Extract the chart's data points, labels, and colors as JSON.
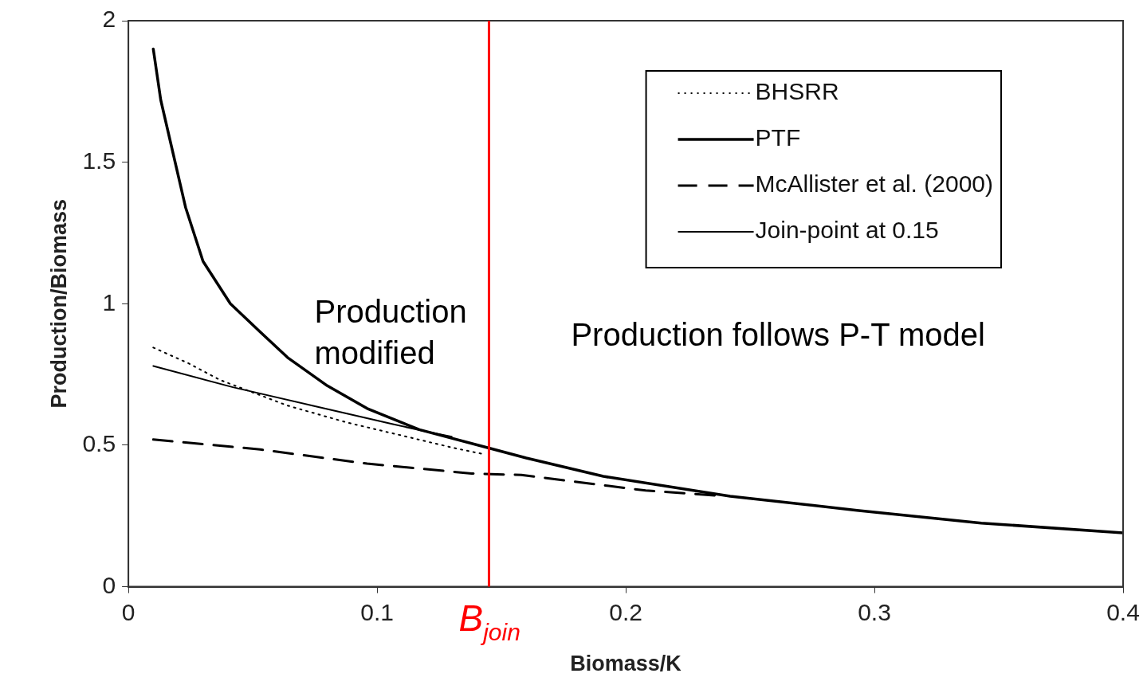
{
  "chart_data": {
    "type": "line",
    "xlabel": "Biomass/K",
    "ylabel": "Production/Biomass",
    "xlim": [
      0,
      0.4
    ],
    "xticks": [
      0,
      0.1,
      0.2,
      0.3,
      0.4
    ],
    "ylim": [
      0,
      2
    ],
    "yticks": [
      0,
      0.5,
      1,
      1.5,
      2
    ],
    "grid": false,
    "legend": "top right",
    "marker": "none",
    "series": [
      {
        "name": "BHSRR",
        "color": "#000000",
        "line_style": "dotted",
        "x": [
          0.01,
          0.024,
          0.037,
          0.064,
          0.088,
          0.112,
          0.131,
          0.142
        ],
        "values": [
          0.845,
          0.79,
          0.73,
          0.64,
          0.58,
          0.53,
          0.49,
          0.47
        ]
      },
      {
        "name": "PTF",
        "color": "#000000",
        "line_style": "solid",
        "x": [
          0.01,
          0.013,
          0.018,
          0.023,
          0.03,
          0.041,
          0.053,
          0.064,
          0.08,
          0.096,
          0.117,
          0.145,
          0.16,
          0.191,
          0.242,
          0.293,
          0.343,
          0.4
        ],
        "values": [
          1.9,
          1.72,
          1.53,
          1.34,
          1.15,
          1.0,
          0.9,
          0.81,
          0.71,
          0.63,
          0.555,
          0.49,
          0.455,
          0.39,
          0.32,
          0.27,
          0.225,
          0.19
        ]
      },
      {
        "name": "McAllister et al. (2000)",
        "color": "#000000",
        "line_style": "dashed",
        "x": [
          0.01,
          0.053,
          0.096,
          0.138,
          0.158,
          0.208,
          0.24
        ],
        "values": [
          0.52,
          0.485,
          0.435,
          0.4,
          0.395,
          0.34,
          0.32
        ]
      },
      {
        "name": "Join-point at 0.15",
        "color": "#000000",
        "line_style": "solid",
        "x": [
          0.01,
          0.042,
          0.074,
          0.106,
          0.119,
          0.13
        ],
        "values": [
          0.78,
          0.705,
          0.64,
          0.575,
          0.55,
          0.53
        ]
      }
    ],
    "ref_lines": [
      {
        "axis": "x",
        "value": 0.145,
        "label": "B$_{join}$",
        "color": "#ff0000"
      }
    ],
    "annotations": [
      "Production modified",
      "Production follows P-T model"
    ]
  }
}
